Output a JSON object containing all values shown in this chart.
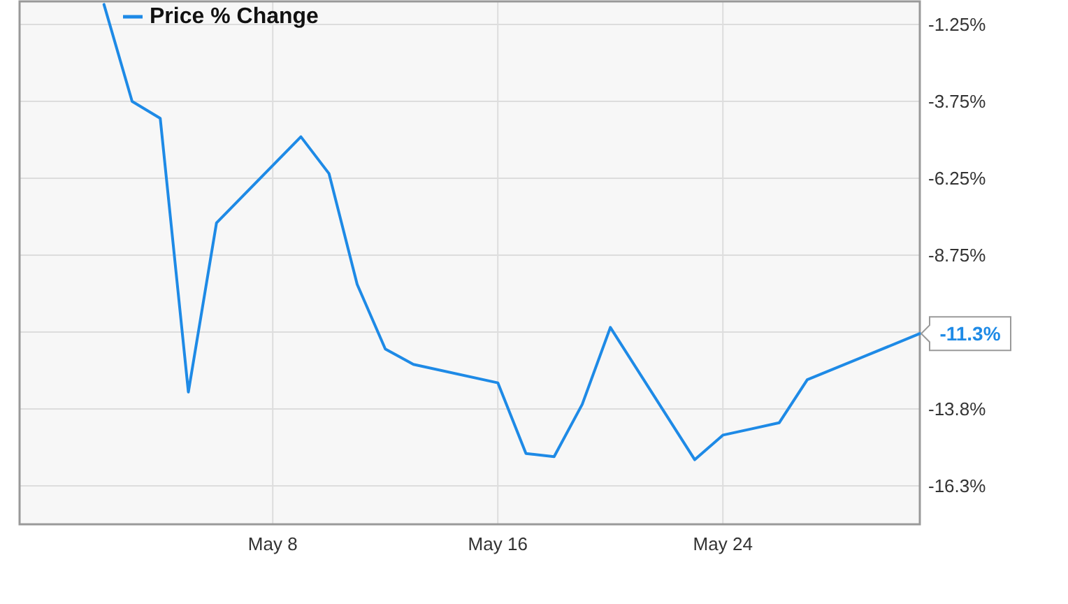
{
  "chart_data": {
    "type": "line",
    "x": [
      "--05-02",
      "--05-03",
      "--05-04",
      "--05-05",
      "--05-06",
      "--05-09",
      "--05-10",
      "--05-11",
      "--05-12",
      "--05-13",
      "--05-16",
      "--05-17",
      "--05-18",
      "--05-19",
      "--05-20",
      "--05-23",
      "--05-24",
      "--05-25",
      "--05-26",
      "--05-27",
      "--05-31"
    ],
    "series": [
      {
        "name": "Price % Change",
        "color": "#1e8ae6",
        "values": [
          -0.6,
          -3.75,
          -4.3,
          -13.2,
          -7.7,
          -4.9,
          -6.1,
          -9.7,
          -11.8,
          -12.3,
          -12.9,
          -15.2,
          -15.3,
          -13.6,
          -11.1,
          -15.4,
          -14.6,
          -14.4,
          -14.2,
          -12.8,
          -11.3
        ],
        "value_labels": [
          null,
          null,
          null,
          null,
          null,
          null,
          null,
          null,
          null,
          null,
          null,
          null,
          null,
          null,
          null,
          null,
          null,
          null,
          null,
          null,
          "-11.3%"
        ]
      }
    ],
    "xlim": [
      "--04-29",
      "--05-31"
    ],
    "xticks": [
      {
        "value": "--05-08",
        "label": "May 8"
      },
      {
        "value": "--05-16",
        "label": "May 16"
      },
      {
        "value": "--05-24",
        "label": "May 24"
      }
    ],
    "ylim": [
      -17.5,
      -0.5
    ],
    "yticks": [
      {
        "value": -1.25,
        "label": "-1.25%"
      },
      {
        "value": -3.75,
        "label": "-3.75%"
      },
      {
        "value": -6.25,
        "label": "-6.25%"
      },
      {
        "value": -8.75,
        "label": "-8.75%"
      },
      {
        "value": -11.25,
        "label": null
      },
      {
        "value": -13.75,
        "label": "-13.8%"
      },
      {
        "value": -16.25,
        "label": "-16.3%"
      }
    ],
    "grid": true,
    "legend": "top left"
  }
}
